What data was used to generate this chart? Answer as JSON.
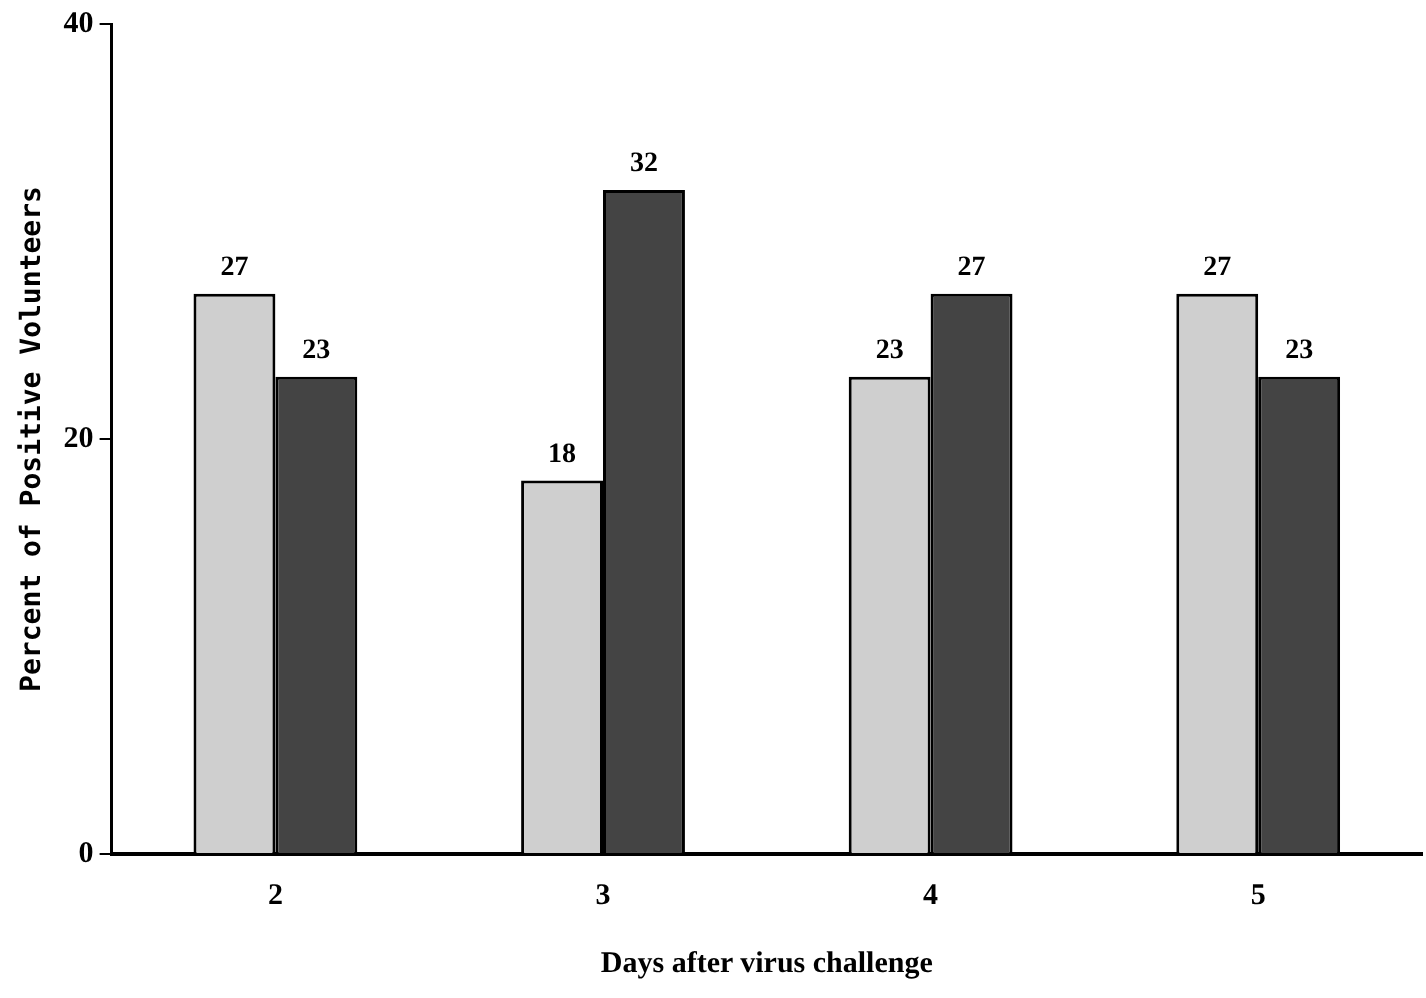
{
  "chart_data": {
    "type": "bar",
    "xlabel": "Days after virus challenge",
    "ylabel": "Percent of Positive Volunteers",
    "categories": [
      "2",
      "3",
      "4",
      "5"
    ],
    "series": [
      {
        "color": "#cfcfcf",
        "values": [
          27,
          18,
          23,
          27
        ]
      },
      {
        "color": "#444444",
        "values": [
          23,
          32,
          27,
          23
        ]
      }
    ],
    "ylim": [
      0,
      40
    ],
    "yticks": [
      0,
      20,
      40
    ],
    "grid": false,
    "legend": false,
    "data_labels": true
  }
}
